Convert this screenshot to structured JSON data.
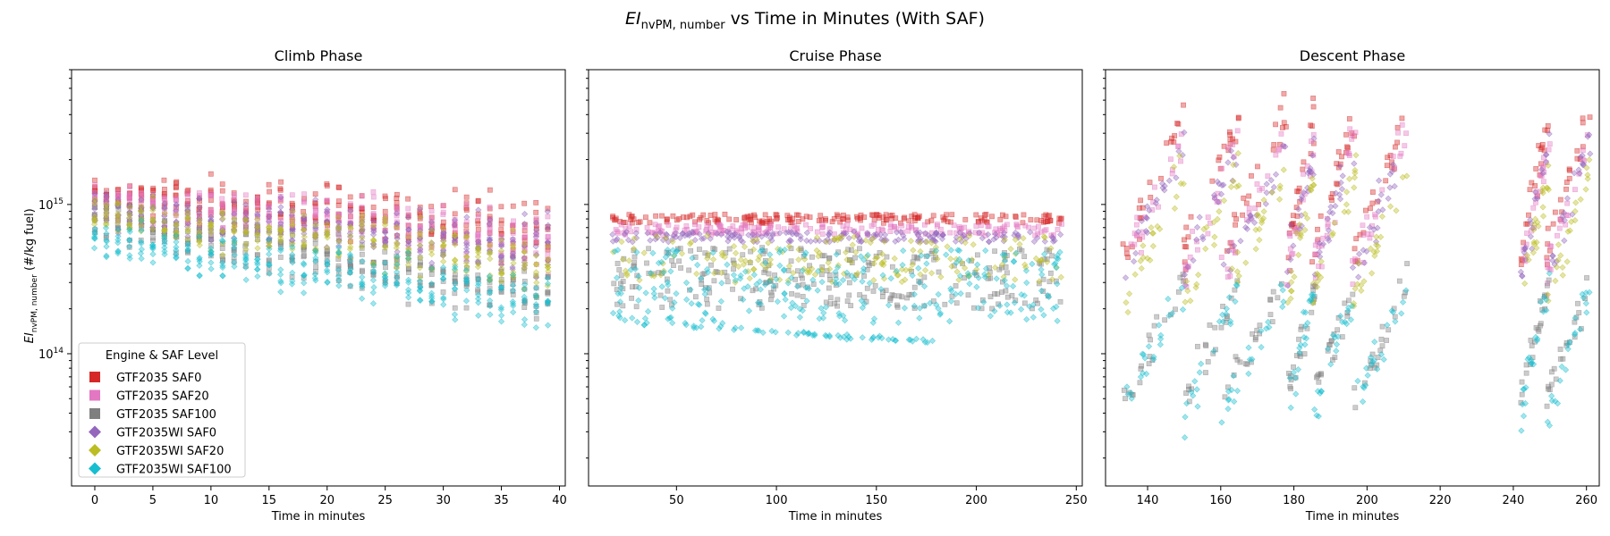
{
  "figure": {
    "title_prefix": "EI",
    "title_sub": "nvPM, number",
    "title_suffix": " vs Time in Minutes (With SAF)"
  },
  "ylabel": {
    "prefix": "EI",
    "sub": "nvPM, number",
    "suffix": " (#/kg fuel)"
  },
  "chart_data": [
    {
      "type": "scatter",
      "title": "Climb Phase",
      "xlabel": "Time in minutes",
      "xlim": [
        -2,
        40.5
      ],
      "xticks": [
        0,
        5,
        10,
        15,
        20,
        25,
        30,
        35,
        40
      ],
      "ylim": [
        13000000000000,
        8000000000000000
      ],
      "yscale": "log",
      "yticks": [
        {
          "value": 100000000000000,
          "label": "10",
          "exp": "14"
        },
        {
          "value": 1000000000000000,
          "label": "10",
          "exp": "15"
        }
      ],
      "x_sampling": "every 1 minute, 0-39",
      "series": [
        {
          "name": "GTF2035 SAF0",
          "marker": "square",
          "color": "#d62728",
          "y_at_start": 1200000000000000,
          "y_at_end": 680000000000000,
          "y_peak": 1900000000000000
        },
        {
          "name": "GTF2035 SAF20",
          "marker": "square",
          "color": "#e377c2",
          "y_at_start": 1050000000000000,
          "y_at_end": 600000000000000,
          "y_peak": 1600000000000000
        },
        {
          "name": "GTF2035 SAF100",
          "marker": "square",
          "color": "#7f7f7f",
          "y_at_start": 800000000000000,
          "y_at_end": 250000000000000,
          "y_min": 200000000000000
        },
        {
          "name": "GTF2035WI SAF0",
          "marker": "diamond",
          "color": "#9467bd",
          "y_at_start": 950000000000000,
          "y_at_end": 500000000000000
        },
        {
          "name": "GTF2035WI SAF20",
          "marker": "diamond",
          "color": "#bcbd22",
          "y_at_start": 850000000000000,
          "y_at_end": 400000000000000
        },
        {
          "name": "GTF2035WI SAF100",
          "marker": "diamond",
          "color": "#17becf",
          "y_at_start": 600000000000000,
          "y_at_end": 220000000000000,
          "y_min": 110000000000000
        }
      ]
    },
    {
      "type": "scatter",
      "title": "Cruise Phase",
      "xlabel": "Time in minutes",
      "xlim": [
        6,
        253
      ],
      "xticks": [
        50,
        100,
        150,
        200,
        250
      ],
      "ylim": [
        13000000000000,
        8000000000000000
      ],
      "yscale": "log",
      "x_range": [
        18,
        243
      ],
      "series": [
        {
          "name": "GTF2035 SAF0",
          "y_band": [
            750000000000000,
            860000000000000
          ]
        },
        {
          "name": "GTF2035 SAF20",
          "y_band": [
            620000000000000,
            740000000000000
          ]
        },
        {
          "name": "GTF2035 SAF100",
          "y_band": [
            200000000000000,
            520000000000000
          ]
        },
        {
          "name": "GTF2035WI SAF0",
          "y_band": [
            560000000000000,
            660000000000000
          ]
        },
        {
          "name": "GTF2035WI SAF20",
          "y_band": [
            300000000000000,
            620000000000000
          ]
        },
        {
          "name": "GTF2035WI SAF100",
          "y_band": [
            160000000000000,
            500000000000000
          ],
          "y_min": 120000000000000
        }
      ]
    },
    {
      "type": "scatter",
      "title": "Descent Phase",
      "xlabel": "Time in minutes",
      "xlim": [
        128.5,
        263.5
      ],
      "xticks": [
        140,
        160,
        180,
        200,
        220,
        240,
        260
      ],
      "ylim": [
        13000000000000,
        8000000000000000
      ],
      "yscale": "log",
      "time_clusters": [
        [
          133,
          211
        ],
        [
          242,
          261
        ]
      ],
      "series": [
        {
          "name": "GTF2035 SAF0",
          "y_range": [
            200000000000000,
            5600000000000000
          ]
        },
        {
          "name": "GTF2035 SAF20",
          "y_range": [
            150000000000000,
            4000000000000000
          ]
        },
        {
          "name": "GTF2035 SAF100",
          "y_range": [
            25000000000000,
            400000000000000
          ]
        },
        {
          "name": "GTF2035WI SAF0",
          "y_range": [
            150000000000000,
            3500000000000000
          ]
        },
        {
          "name": "GTF2035WI SAF20",
          "y_range": [
            100000000000000,
            2500000000000000
          ]
        },
        {
          "name": "GTF2035WI SAF100",
          "y_range": [
            18000000000000,
            400000000000000
          ]
        }
      ]
    }
  ],
  "legend": {
    "title": "Engine & SAF Level",
    "placement": "lower-left",
    "items": [
      {
        "label": "GTF2035 SAF0",
        "marker": "square",
        "color": "#d62728"
      },
      {
        "label": "GTF2035 SAF20",
        "marker": "square",
        "color": "#e377c2"
      },
      {
        "label": "GTF2035 SAF100",
        "marker": "square",
        "color": "#7f7f7f"
      },
      {
        "label": "GTF2035WI SAF0",
        "marker": "diamond",
        "color": "#9467bd"
      },
      {
        "label": "GTF2035WI SAF20",
        "marker": "diamond",
        "color": "#bcbd22"
      },
      {
        "label": "GTF2035WI SAF100",
        "marker": "diamond",
        "color": "#17becf"
      }
    ]
  }
}
